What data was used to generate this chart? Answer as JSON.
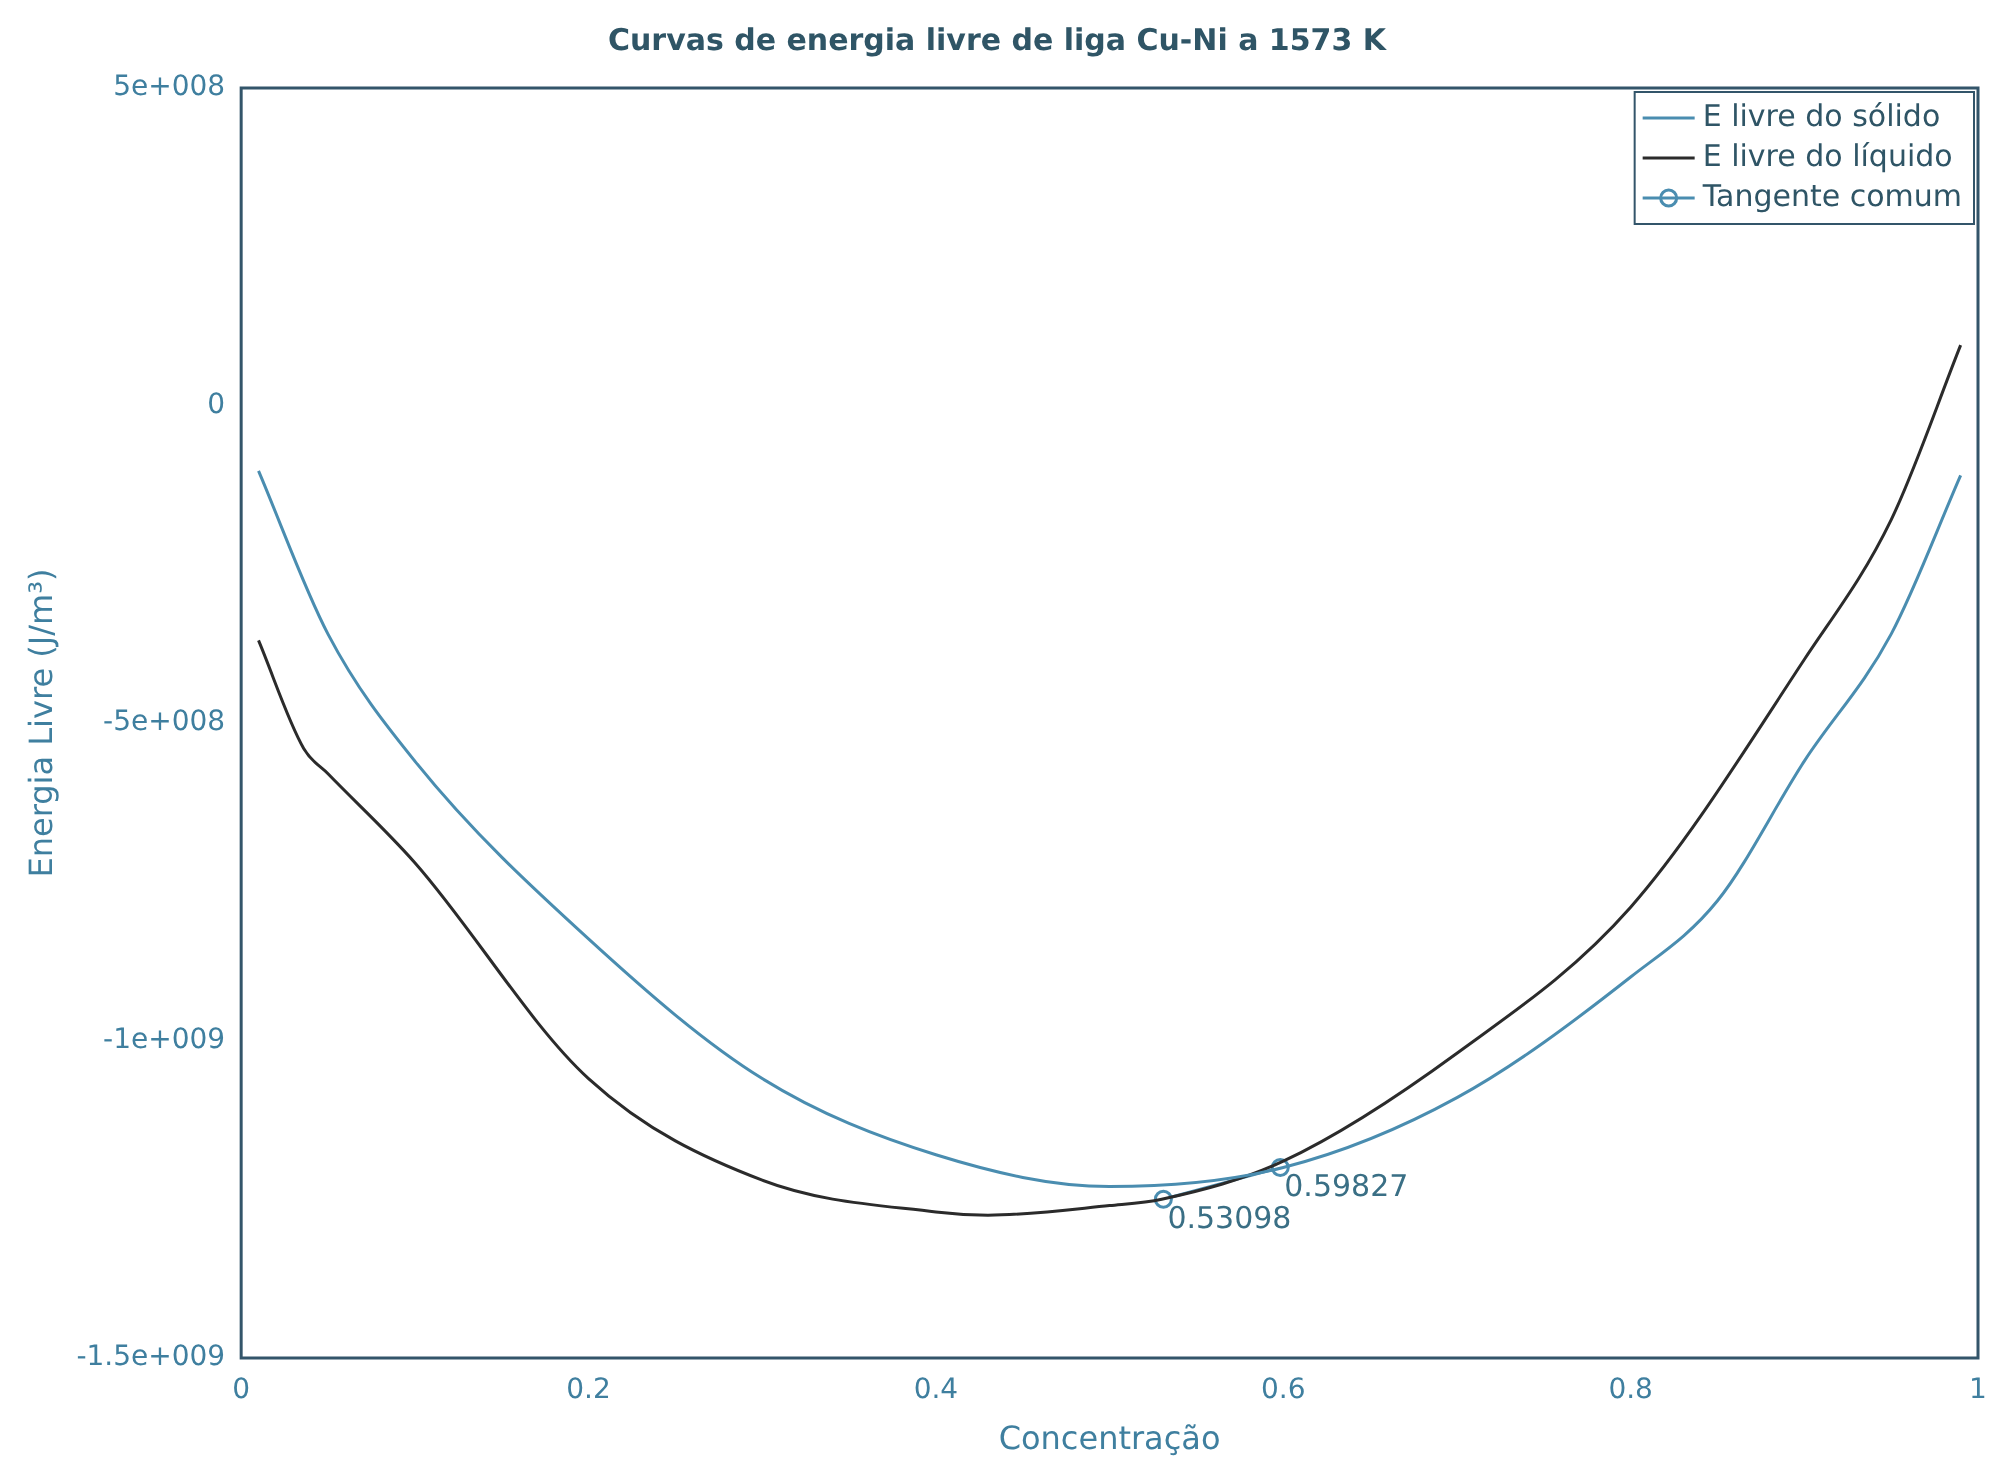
{
  "chart_data": {
    "type": "line",
    "title": "Curvas de energia livre de liga Cu-Ni a 1573 K",
    "xlabel": "Concentração",
    "ylabel": "Energia Livre (J/m³)",
    "xlim": [
      0,
      1
    ],
    "xticks": [
      0,
      0.2,
      0.4,
      0.6,
      0.8,
      1
    ],
    "ylim": [
      -1500000000,
      500000000
    ],
    "yticks": [
      {
        "value": -1500000000,
        "label": "-1.5e+009"
      },
      {
        "value": -1000000000,
        "label": "-1e+009"
      },
      {
        "value": -500000000,
        "label": "-5e+008"
      },
      {
        "value": 0,
        "label": "0"
      },
      {
        "value": 500000000,
        "label": "5e+008"
      }
    ],
    "grid": false,
    "legend": "top right",
    "marker": "none",
    "series": [
      {
        "name": "E livre do sólido",
        "color": "#4a8db0",
        "x": [
          0.01,
          0.05,
          0.1,
          0.2,
          0.3,
          0.4,
          0.5,
          0.6,
          0.7,
          0.8,
          0.85,
          0.9,
          0.95,
          0.99
        ],
        "values": [
          -103000000,
          -360000000,
          -560000000,
          -840000000,
          -1060000000,
          -1180000000,
          -1230000000,
          -1200000000,
          -1090000000,
          -900000000,
          -780000000,
          -560000000,
          -360000000,
          -110000000
        ]
      },
      {
        "name": "E livre do líquido",
        "color": "#2b2b2b",
        "x": [
          0.01,
          0.036,
          0.05,
          0.1,
          0.2,
          0.3,
          0.4,
          0.43,
          0.5,
          0.53,
          0.6,
          0.7,
          0.8,
          0.9,
          0.95,
          0.99
        ],
        "values": [
          -370000000,
          -540000000,
          -580000000,
          -720000000,
          -1060000000,
          -1220000000,
          -1270000000,
          -1275000000,
          -1260000000,
          -1250000000,
          -1190000000,
          -1020000000,
          -790000000,
          -400000000,
          -180000000,
          95000000
        ]
      },
      {
        "name": "Tangente comum",
        "color": "#4a8db0",
        "marker": "circle",
        "x": [
          0.53098,
          0.59827
        ],
        "values": [
          -1250000000,
          -1200000000
        ]
      }
    ],
    "annotations": [
      {
        "text": "0.53098",
        "x": 0.53098,
        "y": -1250000000
      },
      {
        "text": "0.59827",
        "x": 0.59827,
        "y": -1200000000
      }
    ]
  }
}
